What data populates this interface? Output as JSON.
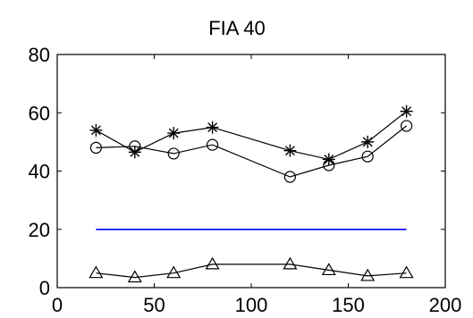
{
  "chart_data": {
    "type": "line",
    "title": "FIA 40",
    "xlabel": "",
    "ylabel": "",
    "xlim": [
      0,
      200
    ],
    "ylim": [
      0,
      80
    ],
    "xticks": [
      0,
      50,
      100,
      150,
      200
    ],
    "yticks": [
      0,
      20,
      40,
      60,
      80
    ],
    "grid": false,
    "series": [
      {
        "marker": "star",
        "color": "#000000",
        "x": [
          20,
          40,
          60,
          80,
          120,
          140,
          160,
          180
        ],
        "y": [
          54,
          46.5,
          53,
          55,
          47,
          44,
          50,
          60.5
        ]
      },
      {
        "marker": "circle",
        "color": "#000000",
        "x": [
          20,
          40,
          60,
          80,
          120,
          140,
          160,
          180
        ],
        "y": [
          48,
          48.5,
          46,
          49,
          38,
          42,
          45,
          55.5
        ]
      },
      {
        "marker": "none",
        "color": "#0000ff",
        "x": [
          20,
          180
        ],
        "y": [
          20,
          20
        ]
      },
      {
        "marker": "triangle",
        "color": "#000000",
        "x": [
          20,
          40,
          60,
          80,
          120,
          140,
          160,
          180
        ],
        "y": [
          5,
          3.5,
          5,
          8,
          8,
          6,
          4,
          5
        ]
      }
    ]
  }
}
